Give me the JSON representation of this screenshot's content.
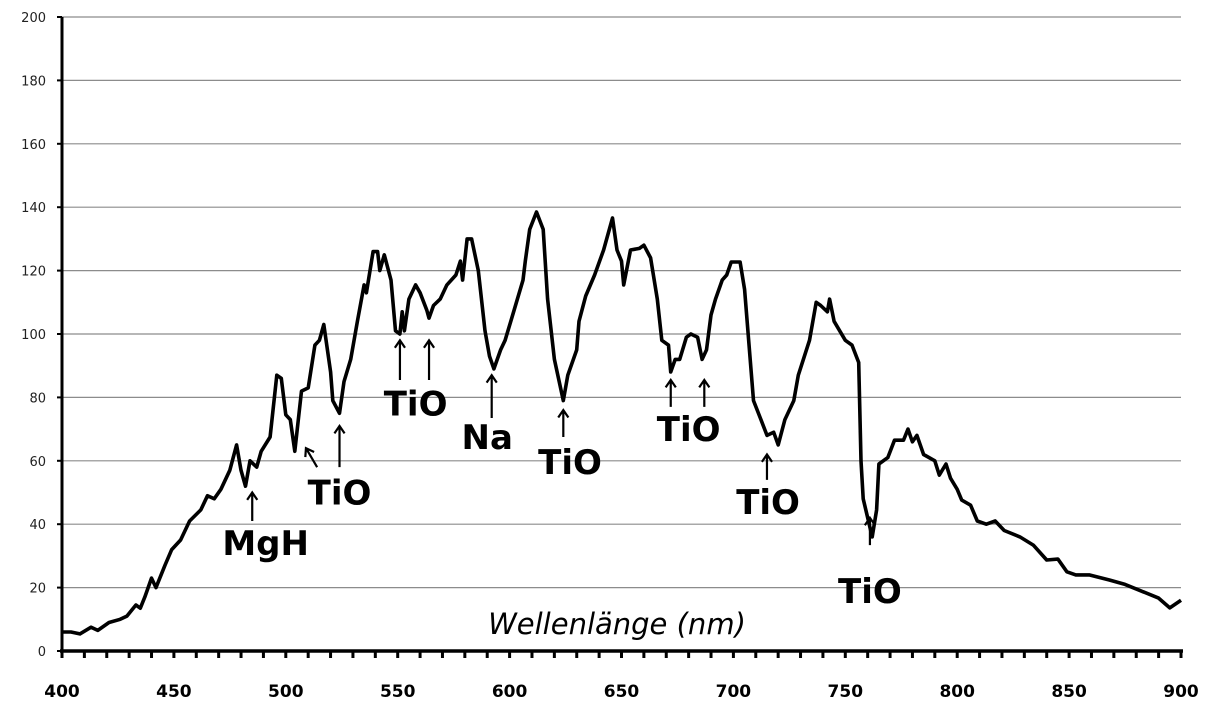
{
  "chart_data": {
    "type": "line",
    "title": "",
    "xlabel": "Wellenlänge (nm)",
    "ylabel": "",
    "xlim": [
      400,
      900
    ],
    "ylim": [
      0,
      200
    ],
    "grid": "horizontal",
    "x_ticks": [
      400,
      450,
      500,
      550,
      600,
      650,
      700,
      750,
      800,
      850,
      900
    ],
    "x_tick_labels": [
      "400",
      "450",
      "500",
      "550",
      "600",
      "650",
      "700",
      "750",
      "800",
      "850",
      "900"
    ],
    "x_minor_step": 10,
    "y_ticks": [
      0,
      20,
      40,
      60,
      80,
      100,
      120,
      140,
      160,
      180,
      200
    ],
    "y_tick_labels": [
      "0",
      "20",
      "40",
      "60",
      "80",
      "100",
      "120",
      "140",
      "160",
      "180",
      "200"
    ],
    "series": [
      {
        "name": "Spektrum",
        "color": "#000000",
        "points": [
          [
            400,
            6
          ],
          [
            404,
            6
          ],
          [
            408,
            5.4
          ],
          [
            413,
            7.5
          ],
          [
            416,
            6.5
          ],
          [
            421,
            9
          ],
          [
            426,
            10
          ],
          [
            429,
            11
          ],
          [
            433,
            14.5
          ],
          [
            435,
            13.5
          ],
          [
            437,
            17
          ],
          [
            440,
            23
          ],
          [
            442,
            20
          ],
          [
            446,
            27
          ],
          [
            449,
            32
          ],
          [
            453,
            35
          ],
          [
            457,
            41
          ],
          [
            462,
            44.5
          ],
          [
            465,
            49
          ],
          [
            468,
            48
          ],
          [
            471,
            51
          ],
          [
            475,
            57
          ],
          [
            478,
            65
          ],
          [
            480,
            57
          ],
          [
            482,
            52
          ],
          [
            484,
            60
          ],
          [
            487,
            58
          ],
          [
            489,
            63
          ],
          [
            493,
            67.5
          ],
          [
            496,
            87
          ],
          [
            498,
            86
          ],
          [
            500,
            74.5
          ],
          [
            502,
            73
          ],
          [
            504,
            63
          ],
          [
            507,
            82
          ],
          [
            510,
            83
          ],
          [
            513,
            96.5
          ],
          [
            515,
            98
          ],
          [
            517,
            103
          ],
          [
            520,
            88
          ],
          [
            521,
            79
          ],
          [
            524,
            75
          ],
          [
            526,
            85
          ],
          [
            529,
            92
          ],
          [
            532,
            104
          ],
          [
            535,
            115.5
          ],
          [
            536,
            113
          ],
          [
            539,
            126
          ],
          [
            541,
            126
          ],
          [
            542,
            120
          ],
          [
            544,
            125
          ],
          [
            547,
            117
          ],
          [
            549,
            101
          ],
          [
            551,
            100
          ],
          [
            552,
            107
          ],
          [
            553,
            101
          ],
          [
            555,
            111
          ],
          [
            558,
            115.5
          ],
          [
            560,
            113
          ],
          [
            563,
            107.5
          ],
          [
            564,
            105
          ],
          [
            566,
            109
          ],
          [
            569,
            111
          ],
          [
            572,
            115.5
          ],
          [
            576,
            118.6
          ],
          [
            578,
            123
          ],
          [
            579,
            117
          ],
          [
            581,
            130
          ],
          [
            583,
            130
          ],
          [
            586,
            120
          ],
          [
            589,
            101
          ],
          [
            591,
            93
          ],
          [
            593,
            89
          ],
          [
            596,
            95
          ],
          [
            598,
            98
          ],
          [
            602,
            107.5
          ],
          [
            606,
            117
          ],
          [
            607,
            123
          ],
          [
            609,
            133
          ],
          [
            612,
            138.5
          ],
          [
            615,
            133
          ],
          [
            617,
            111
          ],
          [
            620,
            92
          ],
          [
            624,
            79
          ],
          [
            626,
            87
          ],
          [
            630,
            95
          ],
          [
            631,
            104
          ],
          [
            634,
            112
          ],
          [
            638,
            118.6
          ],
          [
            642,
            126.5
          ],
          [
            646,
            136.6
          ],
          [
            648,
            126.5
          ],
          [
            650,
            123
          ],
          [
            651,
            115.5
          ],
          [
            654,
            126.5
          ],
          [
            658,
            127
          ],
          [
            660,
            128
          ],
          [
            663,
            124
          ],
          [
            666,
            111
          ],
          [
            668,
            98
          ],
          [
            671,
            96.5
          ],
          [
            672,
            88
          ],
          [
            674,
            92
          ],
          [
            676,
            92
          ],
          [
            679,
            99
          ],
          [
            681,
            100
          ],
          [
            684,
            99
          ],
          [
            686,
            92
          ],
          [
            688,
            95
          ],
          [
            690,
            106
          ],
          [
            692,
            111
          ],
          [
            695,
            117
          ],
          [
            697,
            118.6
          ],
          [
            699,
            122.7
          ],
          [
            703,
            122.7
          ],
          [
            705,
            114
          ],
          [
            709,
            79
          ],
          [
            712,
            73.5
          ],
          [
            715,
            68
          ],
          [
            718,
            69
          ],
          [
            720,
            65
          ],
          [
            723,
            73
          ],
          [
            727,
            79
          ],
          [
            729,
            87
          ],
          [
            734,
            98
          ],
          [
            737,
            110
          ],
          [
            739,
            109
          ],
          [
            742,
            107
          ],
          [
            743,
            111
          ],
          [
            745,
            104
          ],
          [
            750,
            98
          ],
          [
            753,
            96.5
          ],
          [
            756,
            91
          ],
          [
            757,
            60
          ],
          [
            758,
            48
          ],
          [
            762,
            36
          ],
          [
            764,
            44.5
          ],
          [
            765,
            59
          ],
          [
            769,
            61
          ],
          [
            772,
            66.5
          ],
          [
            776,
            66.5
          ],
          [
            778,
            70
          ],
          [
            780,
            66
          ],
          [
            782,
            68
          ],
          [
            785,
            62
          ],
          [
            790,
            60
          ],
          [
            792,
            55.5
          ],
          [
            795,
            59
          ],
          [
            797,
            54.5
          ],
          [
            800,
            51
          ],
          [
            802,
            47.6
          ],
          [
            806,
            46
          ],
          [
            809,
            41
          ],
          [
            813,
            40
          ],
          [
            817,
            41
          ],
          [
            821,
            38
          ],
          [
            828,
            36
          ],
          [
            834,
            33.4
          ],
          [
            840,
            28.7
          ],
          [
            845,
            29
          ],
          [
            849,
            25
          ],
          [
            853,
            24
          ],
          [
            859,
            24
          ],
          [
            868,
            22.4
          ],
          [
            875,
            21
          ],
          [
            882,
            19
          ],
          [
            890,
            16.7
          ],
          [
            895,
            13.6
          ],
          [
            900,
            16
          ]
        ]
      }
    ],
    "annotations": [
      {
        "text": "MgH",
        "label_at": [
          491,
          34
        ],
        "arrows": [
          {
            "from": [
              485,
              41
            ],
            "to": [
              485,
              50
            ]
          }
        ]
      },
      {
        "text": "TiO",
        "label_at": [
          524,
          50
        ],
        "arrows": [
          {
            "from": [
              514,
              58
            ],
            "to": [
              509,
              64
            ]
          },
          {
            "from": [
              524,
              58
            ],
            "to": [
              524,
              71
            ]
          }
        ]
      },
      {
        "text": "TiO",
        "label_at": [
          558,
          78
        ],
        "arrows": [
          {
            "from": [
              551,
              85.5
            ],
            "to": [
              551,
              98
            ]
          },
          {
            "from": [
              564,
              85.5
            ],
            "to": [
              564,
              98
            ]
          }
        ]
      },
      {
        "text": "Na",
        "label_at": [
          590,
          67.5
        ],
        "arrows": [
          {
            "from": [
              592,
              73.5
            ],
            "to": [
              592,
              87
            ]
          }
        ]
      },
      {
        "text": "TiO",
        "label_at": [
          627,
          59.6
        ],
        "arrows": [
          {
            "from": [
              624,
              67.5
            ],
            "to": [
              624,
              76
            ]
          }
        ]
      },
      {
        "text": "TiO",
        "label_at": [
          680,
          70
        ],
        "arrows": [
          {
            "from": [
              672,
              77
            ],
            "to": [
              672,
              85.5
            ]
          },
          {
            "from": [
              687,
              77
            ],
            "to": [
              687,
              85.5
            ]
          }
        ]
      },
      {
        "text": "TiO",
        "label_at": [
          715.5,
          47
        ],
        "arrows": [
          {
            "from": [
              715,
              54
            ],
            "to": [
              715,
              62
            ]
          }
        ]
      },
      {
        "text": "TiO",
        "label_at": [
          761,
          19
        ],
        "arrows": [
          {
            "from": [
              761,
              33.4
            ],
            "to": [
              761,
              42
            ]
          }
        ]
      }
    ]
  }
}
